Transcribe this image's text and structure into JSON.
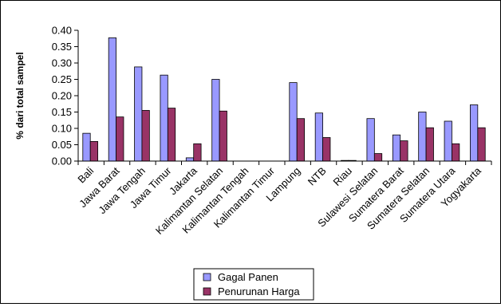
{
  "chart_data": {
    "type": "bar",
    "title": "",
    "xlabel": "",
    "ylabel": "% dari total sampel",
    "ylim": [
      0,
      0.4
    ],
    "yticks": [
      0.0,
      0.05,
      0.1,
      0.15,
      0.2,
      0.25,
      0.3,
      0.35,
      0.4
    ],
    "ytick_labels": [
      "0.00",
      "0.05",
      "0.10",
      "0.15",
      "0.20",
      "0.25",
      "0.30",
      "0.35",
      "0.40"
    ],
    "grid": false,
    "legend_position": "bottom-center",
    "categories": [
      "Bali",
      "Jawa Barat",
      "Jawa Tengah",
      "Jawa Timur",
      "Jakarta",
      "Kalimantan Selatan",
      "Kalimantan Tengah",
      "Kalimantan Timur",
      "Lampung",
      "NTB",
      "Riau",
      "Sulawesi Selatan",
      "Sumatera Barat",
      "Sumatera Selatan",
      "Sumatera Utara",
      "Yogyakarta"
    ],
    "series": [
      {
        "name": "Gagal Panen",
        "color": "#9999ff",
        "values": [
          0.085,
          0.377,
          0.288,
          0.263,
          0.01,
          0.25,
          0,
          0,
          0.24,
          0.147,
          0.002,
          0.13,
          0.08,
          0.15,
          0.122,
          0.172
        ]
      },
      {
        "name": "Penurunan Harga",
        "color": "#993366",
        "values": [
          0.06,
          0.135,
          0.155,
          0.162,
          0.053,
          0.153,
          0,
          0,
          0.13,
          0.072,
          0.002,
          0.023,
          0.062,
          0.102,
          0.053,
          0.102
        ]
      }
    ]
  }
}
